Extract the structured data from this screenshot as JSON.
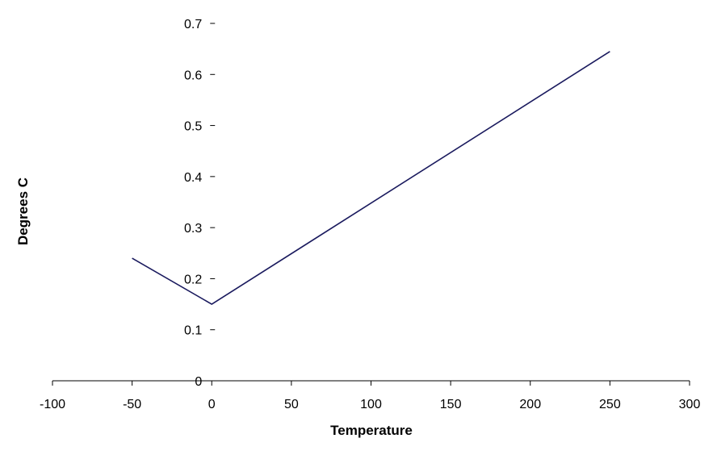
{
  "chart_data": {
    "type": "line",
    "title": "",
    "xlabel": "Temperature",
    "ylabel": "Degrees C",
    "xlim": [
      -100,
      300
    ],
    "ylim": [
      0,
      0.7
    ],
    "x_ticks": [
      "-100",
      "-50",
      "0",
      "50",
      "100",
      "150",
      "200",
      "250",
      "300"
    ],
    "y_ticks": [
      "0",
      "0.1",
      "0.2",
      "0.3",
      "0.4",
      "0.5",
      "0.6",
      "0.7"
    ],
    "grid": false,
    "legend": "none",
    "series": [
      {
        "color": "#1a1a5e",
        "x": [
          -50,
          0,
          250
        ],
        "y": [
          0.24,
          0.15,
          0.645
        ]
      }
    ]
  }
}
